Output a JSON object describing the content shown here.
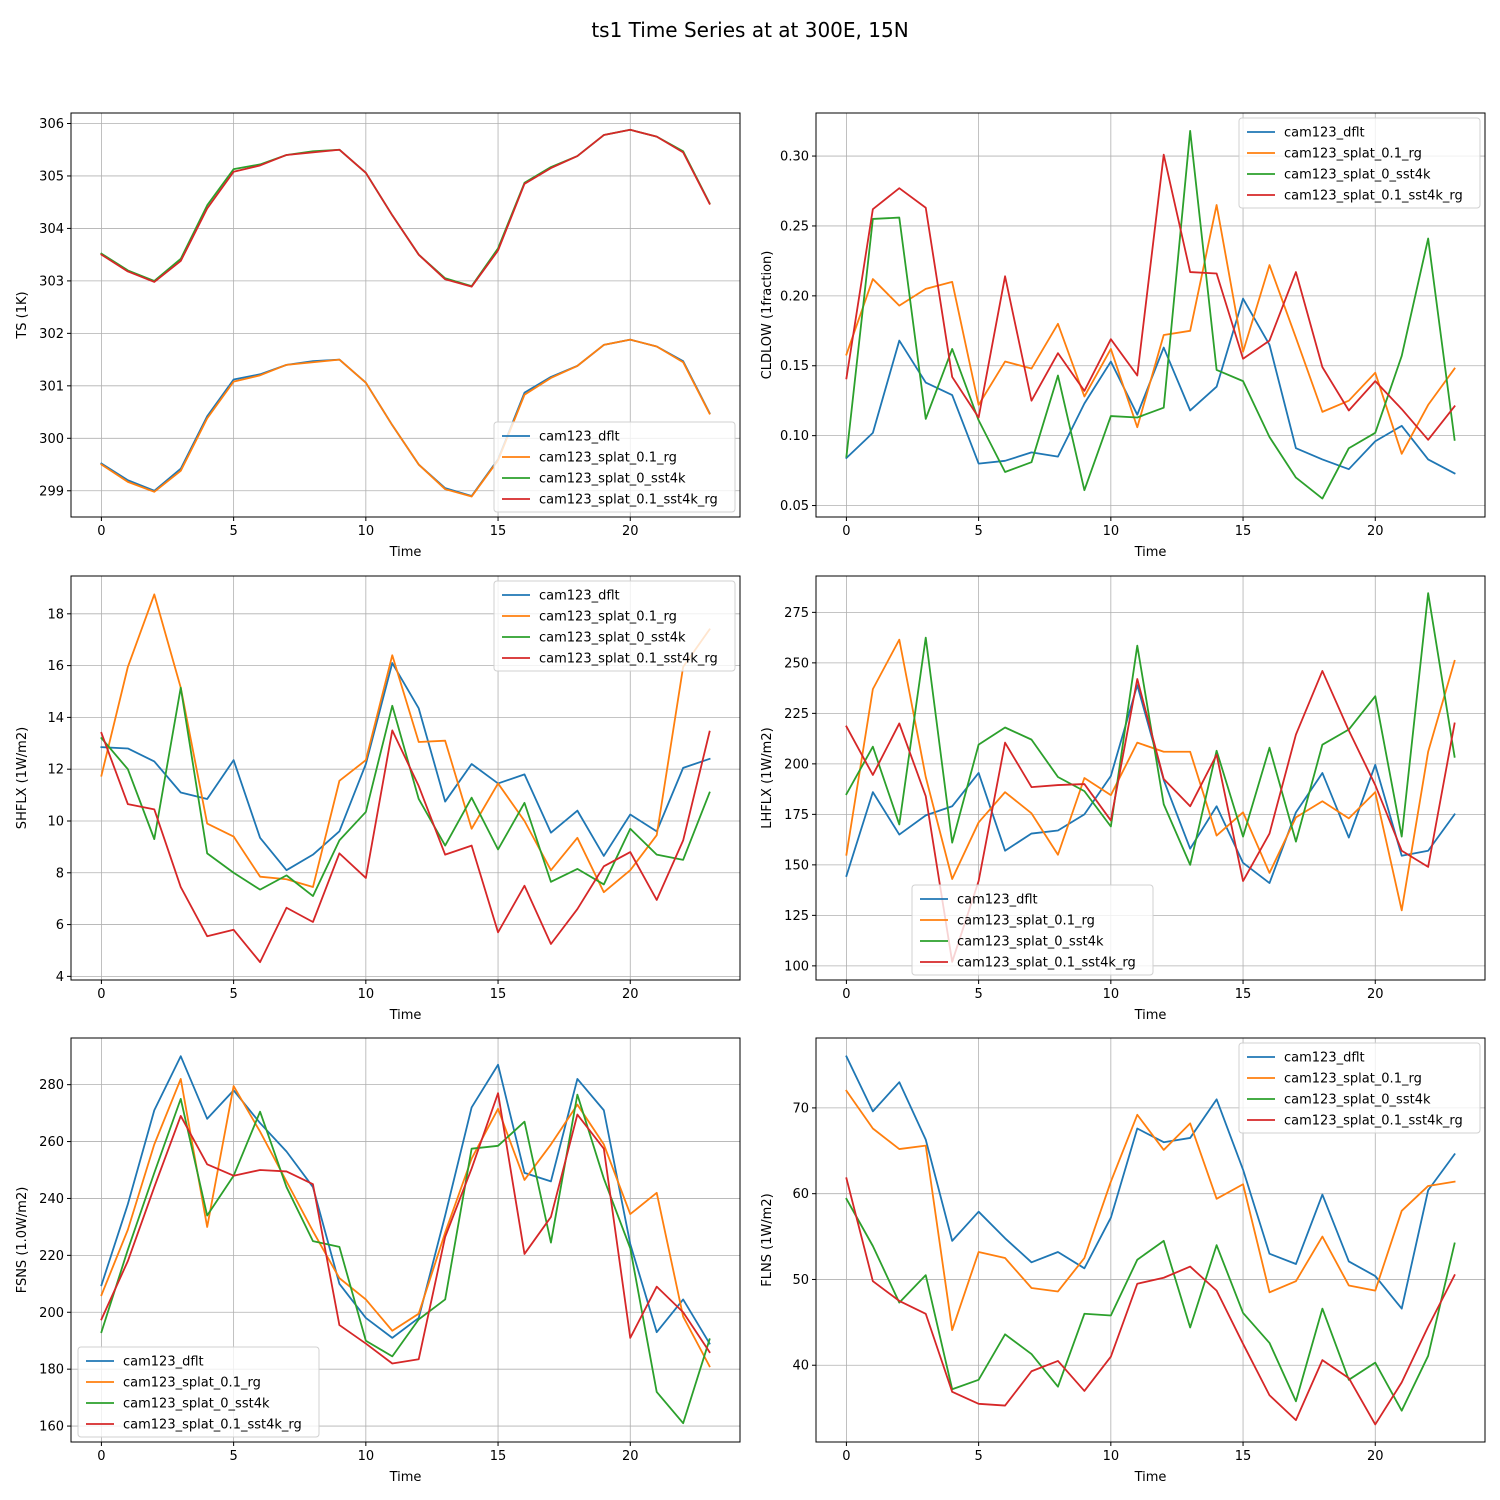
{
  "figure_title": "ts1 Time Series at at 300E, 15N",
  "colors": {
    "cam123_dflt": "#1f77b4",
    "cam123_splat_0.1_rg": "#ff7f0e",
    "cam123_splat_0_sst4k": "#2ca02c",
    "cam123_splat_0.1_sst4k_rg": "#d62728"
  },
  "chart_data": [
    {
      "id": "ts",
      "type": "line",
      "title": "",
      "xlabel": "Time",
      "ylabel": "TS (1K)",
      "xlim": [
        -1.15,
        24.15
      ],
      "ylim": [
        298.5,
        306.2
      ],
      "xticks": [
        0,
        5,
        10,
        15,
        20
      ],
      "yticks": [
        299,
        300,
        301,
        302,
        303,
        304,
        305,
        306
      ],
      "legend_loc": "lower-right",
      "x": [
        0,
        1,
        2,
        3,
        4,
        5,
        6,
        7,
        8,
        9,
        10,
        11,
        12,
        13,
        14,
        15,
        16,
        17,
        18,
        19,
        20,
        21,
        22,
        23
      ],
      "series": [
        {
          "name": "cam123_dflt",
          "values": [
            299.52,
            299.2,
            299.0,
            299.42,
            300.42,
            301.12,
            301.22,
            301.4,
            301.47,
            301.5,
            301.06,
            300.25,
            299.5,
            299.05,
            298.9,
            299.6,
            300.87,
            301.17,
            301.38,
            301.78,
            301.88,
            301.75,
            301.47,
            300.48
          ]
        },
        {
          "name": "cam123_splat_0.1_rg",
          "values": [
            299.5,
            299.17,
            298.98,
            299.38,
            300.38,
            301.08,
            301.2,
            301.4,
            301.45,
            301.5,
            301.06,
            300.25,
            299.5,
            299.03,
            298.89,
            299.58,
            300.83,
            301.15,
            301.38,
            301.78,
            301.88,
            301.75,
            301.45,
            300.47
          ]
        },
        {
          "name": "cam123_splat_0_sst4k",
          "values": [
            303.52,
            303.2,
            303.0,
            303.42,
            304.44,
            305.13,
            305.22,
            305.4,
            305.47,
            305.5,
            305.06,
            304.25,
            303.5,
            303.05,
            302.9,
            303.62,
            304.87,
            305.17,
            305.38,
            305.78,
            305.88,
            305.75,
            305.47,
            304.48
          ]
        },
        {
          "name": "cam123_splat_0.1_sst4k_rg",
          "values": [
            303.5,
            303.18,
            302.98,
            303.38,
            304.38,
            305.08,
            305.2,
            305.4,
            305.45,
            305.5,
            305.06,
            304.25,
            303.5,
            303.03,
            302.89,
            303.58,
            304.85,
            305.15,
            305.38,
            305.78,
            305.88,
            305.75,
            305.45,
            304.47
          ]
        }
      ]
    },
    {
      "id": "cldlow",
      "type": "line",
      "title": "",
      "xlabel": "Time",
      "ylabel": "CLDLOW (1fraction)",
      "xlim": [
        -1.15,
        24.15
      ],
      "ylim": [
        0.0418,
        0.3308
      ],
      "xticks": [
        0,
        5,
        10,
        15,
        20
      ],
      "yticks": [
        0.05,
        0.1,
        0.15,
        0.2,
        0.25,
        0.3
      ],
      "ytick_labels": [
        "0.05",
        "0.10",
        "0.15",
        "0.20",
        "0.25",
        "0.30"
      ],
      "legend_loc": "upper-right",
      "x": [
        0,
        1,
        2,
        3,
        4,
        5,
        6,
        7,
        8,
        9,
        10,
        11,
        12,
        13,
        14,
        15,
        16,
        17,
        18,
        19,
        20,
        21,
        22,
        23
      ],
      "series": [
        {
          "name": "cam123_dflt",
          "values": [
            0.084,
            0.102,
            0.168,
            0.138,
            0.129,
            0.08,
            0.082,
            0.088,
            0.085,
            0.123,
            0.153,
            0.115,
            0.163,
            0.118,
            0.135,
            0.198,
            0.165,
            0.091,
            0.083,
            0.076,
            0.096,
            0.107,
            0.083,
            0.073
          ]
        },
        {
          "name": "cam123_splat_0.1_rg",
          "values": [
            0.158,
            0.212,
            0.193,
            0.205,
            0.21,
            0.122,
            0.153,
            0.148,
            0.18,
            0.128,
            0.162,
            0.106,
            0.172,
            0.175,
            0.265,
            0.16,
            0.222,
            0.17,
            0.117,
            0.125,
            0.145,
            0.087,
            0.122,
            0.148
          ]
        },
        {
          "name": "cam123_splat_0_sst4k",
          "values": [
            0.085,
            0.255,
            0.256,
            0.112,
            0.162,
            0.111,
            0.074,
            0.081,
            0.143,
            0.061,
            0.114,
            0.113,
            0.12,
            0.318,
            0.147,
            0.139,
            0.099,
            0.07,
            0.055,
            0.091,
            0.102,
            0.157,
            0.241,
            0.097
          ]
        },
        {
          "name": "cam123_splat_0.1_sst4k_rg",
          "values": [
            0.141,
            0.262,
            0.277,
            0.263,
            0.142,
            0.113,
            0.214,
            0.125,
            0.159,
            0.132,
            0.169,
            0.143,
            0.301,
            0.217,
            0.216,
            0.155,
            0.168,
            0.217,
            0.149,
            0.118,
            0.139,
            0.119,
            0.097,
            0.121
          ]
        }
      ]
    },
    {
      "id": "shflx",
      "type": "line",
      "title": "",
      "xlabel": "Time",
      "ylabel": "SHFLX (1W/m2)",
      "xlim": [
        -1.15,
        24.15
      ],
      "ylim": [
        3.86,
        19.46
      ],
      "xticks": [
        0,
        5,
        10,
        15,
        20
      ],
      "yticks": [
        4,
        6,
        8,
        10,
        12,
        14,
        16,
        18
      ],
      "legend_loc": "upper-right",
      "x": [
        0,
        1,
        2,
        3,
        4,
        5,
        6,
        7,
        8,
        9,
        10,
        11,
        12,
        13,
        14,
        15,
        16,
        17,
        18,
        19,
        20,
        21,
        22,
        23
      ],
      "series": [
        {
          "name": "cam123_dflt",
          "values": [
            12.85,
            12.8,
            12.3,
            11.1,
            10.85,
            12.35,
            9.35,
            8.1,
            8.7,
            9.6,
            12.2,
            16.1,
            14.35,
            10.75,
            12.2,
            11.45,
            11.8,
            9.55,
            10.4,
            8.65,
            10.25,
            9.6,
            12.05,
            12.4
          ]
        },
        {
          "name": "cam123_splat_0.1_rg",
          "values": [
            11.75,
            15.95,
            18.75,
            15.15,
            9.9,
            9.4,
            7.85,
            7.75,
            7.45,
            11.55,
            12.35,
            16.4,
            13.05,
            13.1,
            9.7,
            11.45,
            10.0,
            8.1,
            9.35,
            7.25,
            8.1,
            9.45,
            15.95,
            17.4
          ]
        },
        {
          "name": "cam123_splat_0_sst4k",
          "values": [
            13.2,
            12.0,
            9.3,
            15.15,
            8.75,
            8.0,
            7.35,
            7.9,
            7.1,
            9.25,
            10.35,
            14.45,
            10.85,
            9.05,
            10.9,
            8.9,
            10.7,
            7.65,
            8.15,
            7.55,
            9.7,
            8.7,
            8.5,
            11.1
          ]
        },
        {
          "name": "cam123_splat_0.1_sst4k_rg",
          "values": [
            13.4,
            10.65,
            10.45,
            7.45,
            5.55,
            5.8,
            4.55,
            6.65,
            6.1,
            8.75,
            7.8,
            13.5,
            11.35,
            8.7,
            9.05,
            5.7,
            7.5,
            5.25,
            6.6,
            8.25,
            8.8,
            6.95,
            9.25,
            13.45
          ]
        }
      ]
    },
    {
      "id": "lhflx",
      "type": "line",
      "title": "",
      "xlabel": "Time",
      "ylabel": "LHFLX (1W/m2)",
      "xlim": [
        -1.15,
        24.15
      ],
      "ylim": [
        93.0,
        293.0
      ],
      "xticks": [
        0,
        5,
        10,
        15,
        20
      ],
      "yticks": [
        100,
        125,
        150,
        175,
        200,
        225,
        250,
        275
      ],
      "legend_loc": "lower-center",
      "x": [
        0,
        1,
        2,
        3,
        4,
        5,
        6,
        7,
        8,
        9,
        10,
        11,
        12,
        13,
        14,
        15,
        16,
        17,
        18,
        19,
        20,
        21,
        22,
        23
      ],
      "series": [
        {
          "name": "cam123_dflt",
          "values": [
            144.5,
            186.0,
            165.0,
            174.5,
            179.0,
            195.5,
            157.0,
            165.5,
            167.0,
            175.0,
            194.0,
            239.0,
            192.0,
            158.0,
            179.0,
            151.0,
            141.0,
            176.0,
            195.5,
            163.5,
            199.5,
            154.5,
            157.0,
            175.0
          ]
        },
        {
          "name": "cam123_splat_0.1_rg",
          "values": [
            155.0,
            237.0,
            261.5,
            193.5,
            143.0,
            171.0,
            186.0,
            175.5,
            155.0,
            193.0,
            184.5,
            210.5,
            206.0,
            206.0,
            164.5,
            176.0,
            146.0,
            173.5,
            181.5,
            173.0,
            186.0,
            127.5,
            206.0,
            251.0
          ]
        },
        {
          "name": "cam123_splat_0_sst4k",
          "values": [
            185.0,
            208.5,
            170.0,
            262.5,
            161.0,
            209.5,
            218.0,
            212.0,
            193.5,
            186.5,
            169.0,
            258.5,
            180.0,
            150.0,
            206.5,
            164.0,
            208.0,
            161.5,
            209.5,
            217.0,
            233.5,
            164.0,
            284.5,
            203.5
          ]
        },
        {
          "name": "cam123_splat_0.1_sst4k_rg",
          "values": [
            218.5,
            194.5,
            220.0,
            184.0,
            102.0,
            142.0,
            210.5,
            188.5,
            189.5,
            190.0,
            172.0,
            242.0,
            192.5,
            179.0,
            204.5,
            142.0,
            165.5,
            214.5,
            246.0,
            216.5,
            189.5,
            157.0,
            149.0,
            220.0
          ]
        }
      ]
    },
    {
      "id": "fsns",
      "type": "line",
      "title": "",
      "xlabel": "Time",
      "ylabel": "FSNS (1.0W/m2)",
      "xlim": [
        -1.15,
        24.15
      ],
      "ylim": [
        154.4,
        296.4
      ],
      "xticks": [
        0,
        5,
        10,
        15,
        20
      ],
      "yticks": [
        160,
        180,
        200,
        220,
        240,
        260,
        280
      ],
      "legend_loc": "lower-left",
      "x": [
        0,
        1,
        2,
        3,
        4,
        5,
        6,
        7,
        8,
        9,
        10,
        11,
        12,
        13,
        14,
        15,
        16,
        17,
        18,
        19,
        20,
        21,
        22,
        23
      ],
      "series": [
        {
          "name": "cam123_dflt",
          "values": [
            209.5,
            238.0,
            271.0,
            290.0,
            268.0,
            278.0,
            266.5,
            256.5,
            244.0,
            210.0,
            198.0,
            191.0,
            198.0,
            234.0,
            272.0,
            287.0,
            249.0,
            246.0,
            282.0,
            271.0,
            224.0,
            193.0,
            204.5,
            189.0
          ]
        },
        {
          "name": "cam123_splat_0.1_rg",
          "values": [
            206.0,
            229.0,
            259.0,
            282.0,
            230.0,
            279.5,
            263.5,
            246.0,
            228.5,
            212.0,
            204.5,
            193.5,
            199.5,
            228.0,
            254.0,
            271.5,
            246.5,
            259.0,
            273.0,
            259.0,
            234.5,
            242.0,
            198.5,
            181.0
          ]
        },
        {
          "name": "cam123_splat_0_sst4k",
          "values": [
            193.0,
            222.0,
            249.0,
            275.0,
            234.0,
            248.0,
            270.5,
            244.0,
            225.0,
            223.0,
            190.0,
            184.5,
            197.5,
            204.5,
            257.5,
            258.5,
            267.0,
            224.5,
            276.5,
            247.0,
            222.5,
            172.0,
            161.0,
            190.5
          ]
        },
        {
          "name": "cam123_splat_0.1_sst4k_rg",
          "values": [
            197.5,
            218.0,
            244.0,
            269.0,
            252.0,
            248.0,
            250.0,
            249.5,
            245.0,
            195.5,
            189.0,
            182.0,
            183.5,
            226.5,
            250.5,
            277.0,
            220.5,
            233.5,
            269.5,
            257.5,
            191.0,
            209.0,
            200.0,
            186.0
          ]
        }
      ]
    },
    {
      "id": "flns",
      "type": "line",
      "title": "",
      "xlabel": "Time",
      "ylabel": "FLNS (1W/m2)",
      "xlim": [
        -1.15,
        24.15
      ],
      "ylim": [
        31.05,
        78.15
      ],
      "xticks": [
        0,
        5,
        10,
        15,
        20
      ],
      "yticks": [
        40,
        50,
        60,
        70
      ],
      "legend_loc": "upper-right",
      "x": [
        0,
        1,
        2,
        3,
        4,
        5,
        6,
        7,
        8,
        9,
        10,
        11,
        12,
        13,
        14,
        15,
        16,
        17,
        18,
        19,
        20,
        21,
        22,
        23
      ],
      "series": [
        {
          "name": "cam123_dflt",
          "values": [
            76.0,
            69.6,
            73.0,
            66.3,
            54.5,
            57.9,
            54.8,
            52.0,
            53.2,
            51.3,
            57.2,
            67.6,
            66.0,
            66.5,
            71.0,
            62.8,
            53.0,
            51.8,
            59.9,
            52.1,
            50.4,
            46.6,
            60.4,
            64.6
          ]
        },
        {
          "name": "cam123_splat_0.1_rg",
          "values": [
            72.0,
            67.6,
            65.2,
            65.6,
            44.1,
            53.2,
            52.5,
            49.0,
            48.6,
            52.5,
            61.4,
            69.2,
            65.1,
            68.2,
            59.4,
            61.1,
            48.5,
            49.8,
            55.0,
            49.3,
            48.7,
            58.0,
            60.9,
            61.4
          ]
        },
        {
          "name": "cam123_splat_0_sst4k",
          "values": [
            59.4,
            53.9,
            47.3,
            50.5,
            37.2,
            38.3,
            43.6,
            41.3,
            37.5,
            46.0,
            45.8,
            52.3,
            54.5,
            44.4,
            54.0,
            46.1,
            42.6,
            35.8,
            46.6,
            38.3,
            40.3,
            34.7,
            41.1,
            54.2
          ]
        },
        {
          "name": "cam123_splat_0.1_sst4k_rg",
          "values": [
            61.8,
            49.8,
            47.5,
            46.0,
            36.9,
            35.5,
            35.3,
            39.3,
            40.5,
            37.0,
            41.0,
            49.5,
            50.2,
            51.5,
            48.7,
            42.5,
            36.5,
            33.6,
            40.6,
            38.5,
            33.1,
            38.0,
            44.5,
            50.5
          ]
        }
      ]
    }
  ]
}
